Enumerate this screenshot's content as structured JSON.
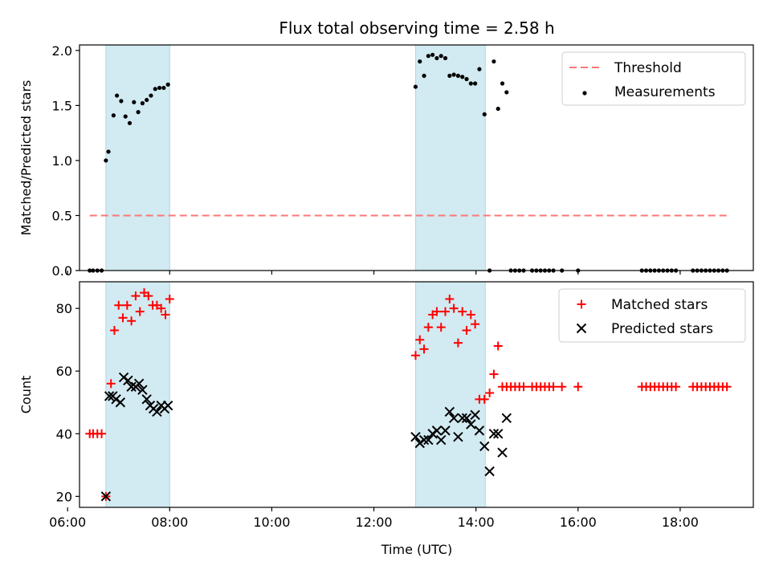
{
  "chart_data": {
    "title": "Flux total observing time = 2.58 h",
    "xlabel": "Time (UTC)",
    "x_unit": "hours UTC",
    "xlim": [
      "06:14",
      "19:26"
    ],
    "xticks": [
      {
        "value": "06:00",
        "label": "06:00"
      },
      {
        "value": "08:00",
        "label": "08:00"
      },
      {
        "value": "10:00",
        "label": "10:00"
      },
      {
        "value": "12:00",
        "label": "12:00"
      },
      {
        "value": "14:00",
        "label": "14:00"
      },
      {
        "value": "16:00",
        "label": "16:00"
      },
      {
        "value": "18:00",
        "label": "18:00"
      }
    ],
    "shaded_intervals": [
      {
        "start": "06:45",
        "end": "08:00"
      },
      {
        "start": "12:49",
        "end": "14:11"
      }
    ],
    "shade_color": "#add8e6",
    "panels": [
      {
        "type": "scatter",
        "ylabel": "Matched/Predicted stars",
        "ylim": [
          0,
          2.05
        ],
        "yticks": [
          "0.0",
          "0.5",
          "1.0",
          "1.5",
          "2.0"
        ],
        "legend_position": "top-right",
        "series": [
          {
            "name": "Threshold",
            "type": "line",
            "style": "dashed",
            "color": "#ff7777",
            "x": [
              "06:26",
              "18:55"
            ],
            "y": [
              0.5,
              0.5
            ]
          },
          {
            "name": "Measurements",
            "type": "scatter",
            "marker": "dot",
            "color": "#000000",
            "x": [
              "06:26",
              "06:30",
              "06:35",
              "06:40",
              "06:45",
              "06:48",
              "06:54",
              "06:58",
              "07:03",
              "07:08",
              "07:13",
              "07:18",
              "07:23",
              "07:28",
              "07:33",
              "07:38",
              "07:43",
              "07:48",
              "07:53",
              "07:58",
              "12:49",
              "12:54",
              "12:59",
              "13:04",
              "13:09",
              "13:14",
              "13:19",
              "13:24",
              "13:29",
              "13:34",
              "13:39",
              "13:44",
              "13:49",
              "13:54",
              "13:59",
              "14:04",
              "14:10",
              "14:16",
              "14:21",
              "14:26",
              "14:31",
              "14:36",
              "14:41",
              "14:46",
              "14:51",
              "14:56",
              "15:06",
              "15:11",
              "15:16",
              "15:21",
              "15:26",
              "15:31",
              "15:41",
              "16:00",
              "17:15",
              "17:20",
              "17:25",
              "17:30",
              "17:35",
              "17:40",
              "17:45",
              "17:50",
              "17:55",
              "18:15",
              "18:20",
              "18:25",
              "18:30",
              "18:35",
              "18:40",
              "18:45",
              "18:50",
              "18:55"
            ],
            "y": [
              0,
              0,
              0,
              0,
              1.0,
              1.08,
              1.41,
              1.59,
              1.54,
              1.4,
              1.34,
              1.53,
              1.44,
              1.52,
              1.55,
              1.59,
              1.65,
              1.66,
              1.66,
              1.69,
              1.67,
              1.9,
              1.77,
              1.95,
              1.96,
              1.93,
              1.95,
              1.93,
              1.77,
              1.78,
              1.77,
              1.76,
              1.74,
              1.7,
              1.7,
              1.83,
              1.42,
              0,
              1.9,
              1.47,
              1.7,
              1.62,
              0,
              0,
              0,
              0,
              0,
              0,
              0,
              0,
              0,
              0,
              0,
              0,
              0,
              0,
              0,
              0,
              0,
              0,
              0,
              0,
              0,
              0,
              0,
              0,
              0,
              0,
              0,
              0,
              0,
              0
            ]
          }
        ]
      },
      {
        "type": "scatter",
        "ylabel": "Count",
        "ylim": [
          16.5,
          88.5
        ],
        "yticks": [
          "20",
          "40",
          "60",
          "80"
        ],
        "legend_position": "top-right",
        "series": [
          {
            "name": "Matched stars",
            "type": "scatter",
            "marker": "plus",
            "color": "#ff0000",
            "x": [
              "06:26",
              "06:30",
              "06:35",
              "06:40",
              "06:45",
              "06:51",
              "06:55",
              "07:00",
              "07:05",
              "07:10",
              "07:15",
              "07:20",
              "07:25",
              "07:30",
              "07:35",
              "07:40",
              "07:45",
              "07:50",
              "07:55",
              "08:00",
              "12:49",
              "12:54",
              "12:59",
              "13:04",
              "13:09",
              "13:14",
              "13:19",
              "13:24",
              "13:29",
              "13:34",
              "13:39",
              "13:44",
              "13:49",
              "13:54",
              "13:59",
              "14:04",
              "14:10",
              "14:16",
              "14:21",
              "14:26",
              "14:31",
              "14:36",
              "14:41",
              "14:46",
              "14:51",
              "14:56",
              "15:06",
              "15:11",
              "15:16",
              "15:21",
              "15:26",
              "15:31",
              "15:41",
              "16:00",
              "17:15",
              "17:20",
              "17:25",
              "17:30",
              "17:35",
              "17:40",
              "17:45",
              "17:50",
              "17:55",
              "18:15",
              "18:20",
              "18:25",
              "18:30",
              "18:35",
              "18:40",
              "18:45",
              "18:50",
              "18:55"
            ],
            "y": [
              40,
              40,
              40,
              40,
              20,
              56,
              73,
              81,
              77,
              81,
              76,
              84,
              79,
              85,
              84,
              81,
              81,
              80,
              78,
              83,
              65,
              70,
              67,
              74,
              78,
              79,
              74,
              79,
              83,
              80,
              69,
              79,
              73,
              78,
              75,
              51,
              51,
              53,
              59,
              68,
              55,
              55,
              55,
              55,
              55,
              55,
              55,
              55,
              55,
              55,
              55,
              55,
              55,
              55,
              55,
              55,
              55,
              55,
              55,
              55,
              55,
              55,
              55,
              55,
              55,
              55,
              55,
              55,
              55,
              55,
              55,
              55
            ]
          },
          {
            "name": "Predicted stars",
            "type": "scatter",
            "marker": "cross",
            "color": "#000000",
            "x": [
              "06:45",
              "06:49",
              "06:53",
              "06:57",
              "07:02",
              "07:06",
              "07:11",
              "07:15",
              "07:20",
              "07:24",
              "07:28",
              "07:33",
              "07:37",
              "07:41",
              "07:45",
              "07:50",
              "07:54",
              "07:58",
              "12:49",
              "12:54",
              "12:59",
              "13:04",
              "13:09",
              "13:14",
              "13:19",
              "13:24",
              "13:29",
              "13:34",
              "13:39",
              "13:44",
              "13:49",
              "13:54",
              "13:59",
              "14:04",
              "14:10",
              "14:16",
              "14:21",
              "14:26",
              "14:31",
              "14:36"
            ],
            "y": [
              20,
              52,
              52,
              51,
              50,
              58,
              57,
              55,
              55,
              56,
              54,
              51,
              49,
              48,
              47,
              49,
              48,
              49,
              39,
              37,
              38,
              38,
              40,
              41,
              38,
              41,
              47,
              45,
              39,
              45,
              45,
              43,
              46,
              41,
              36,
              28,
              40,
              40,
              34,
              45
            ]
          }
        ]
      }
    ]
  }
}
